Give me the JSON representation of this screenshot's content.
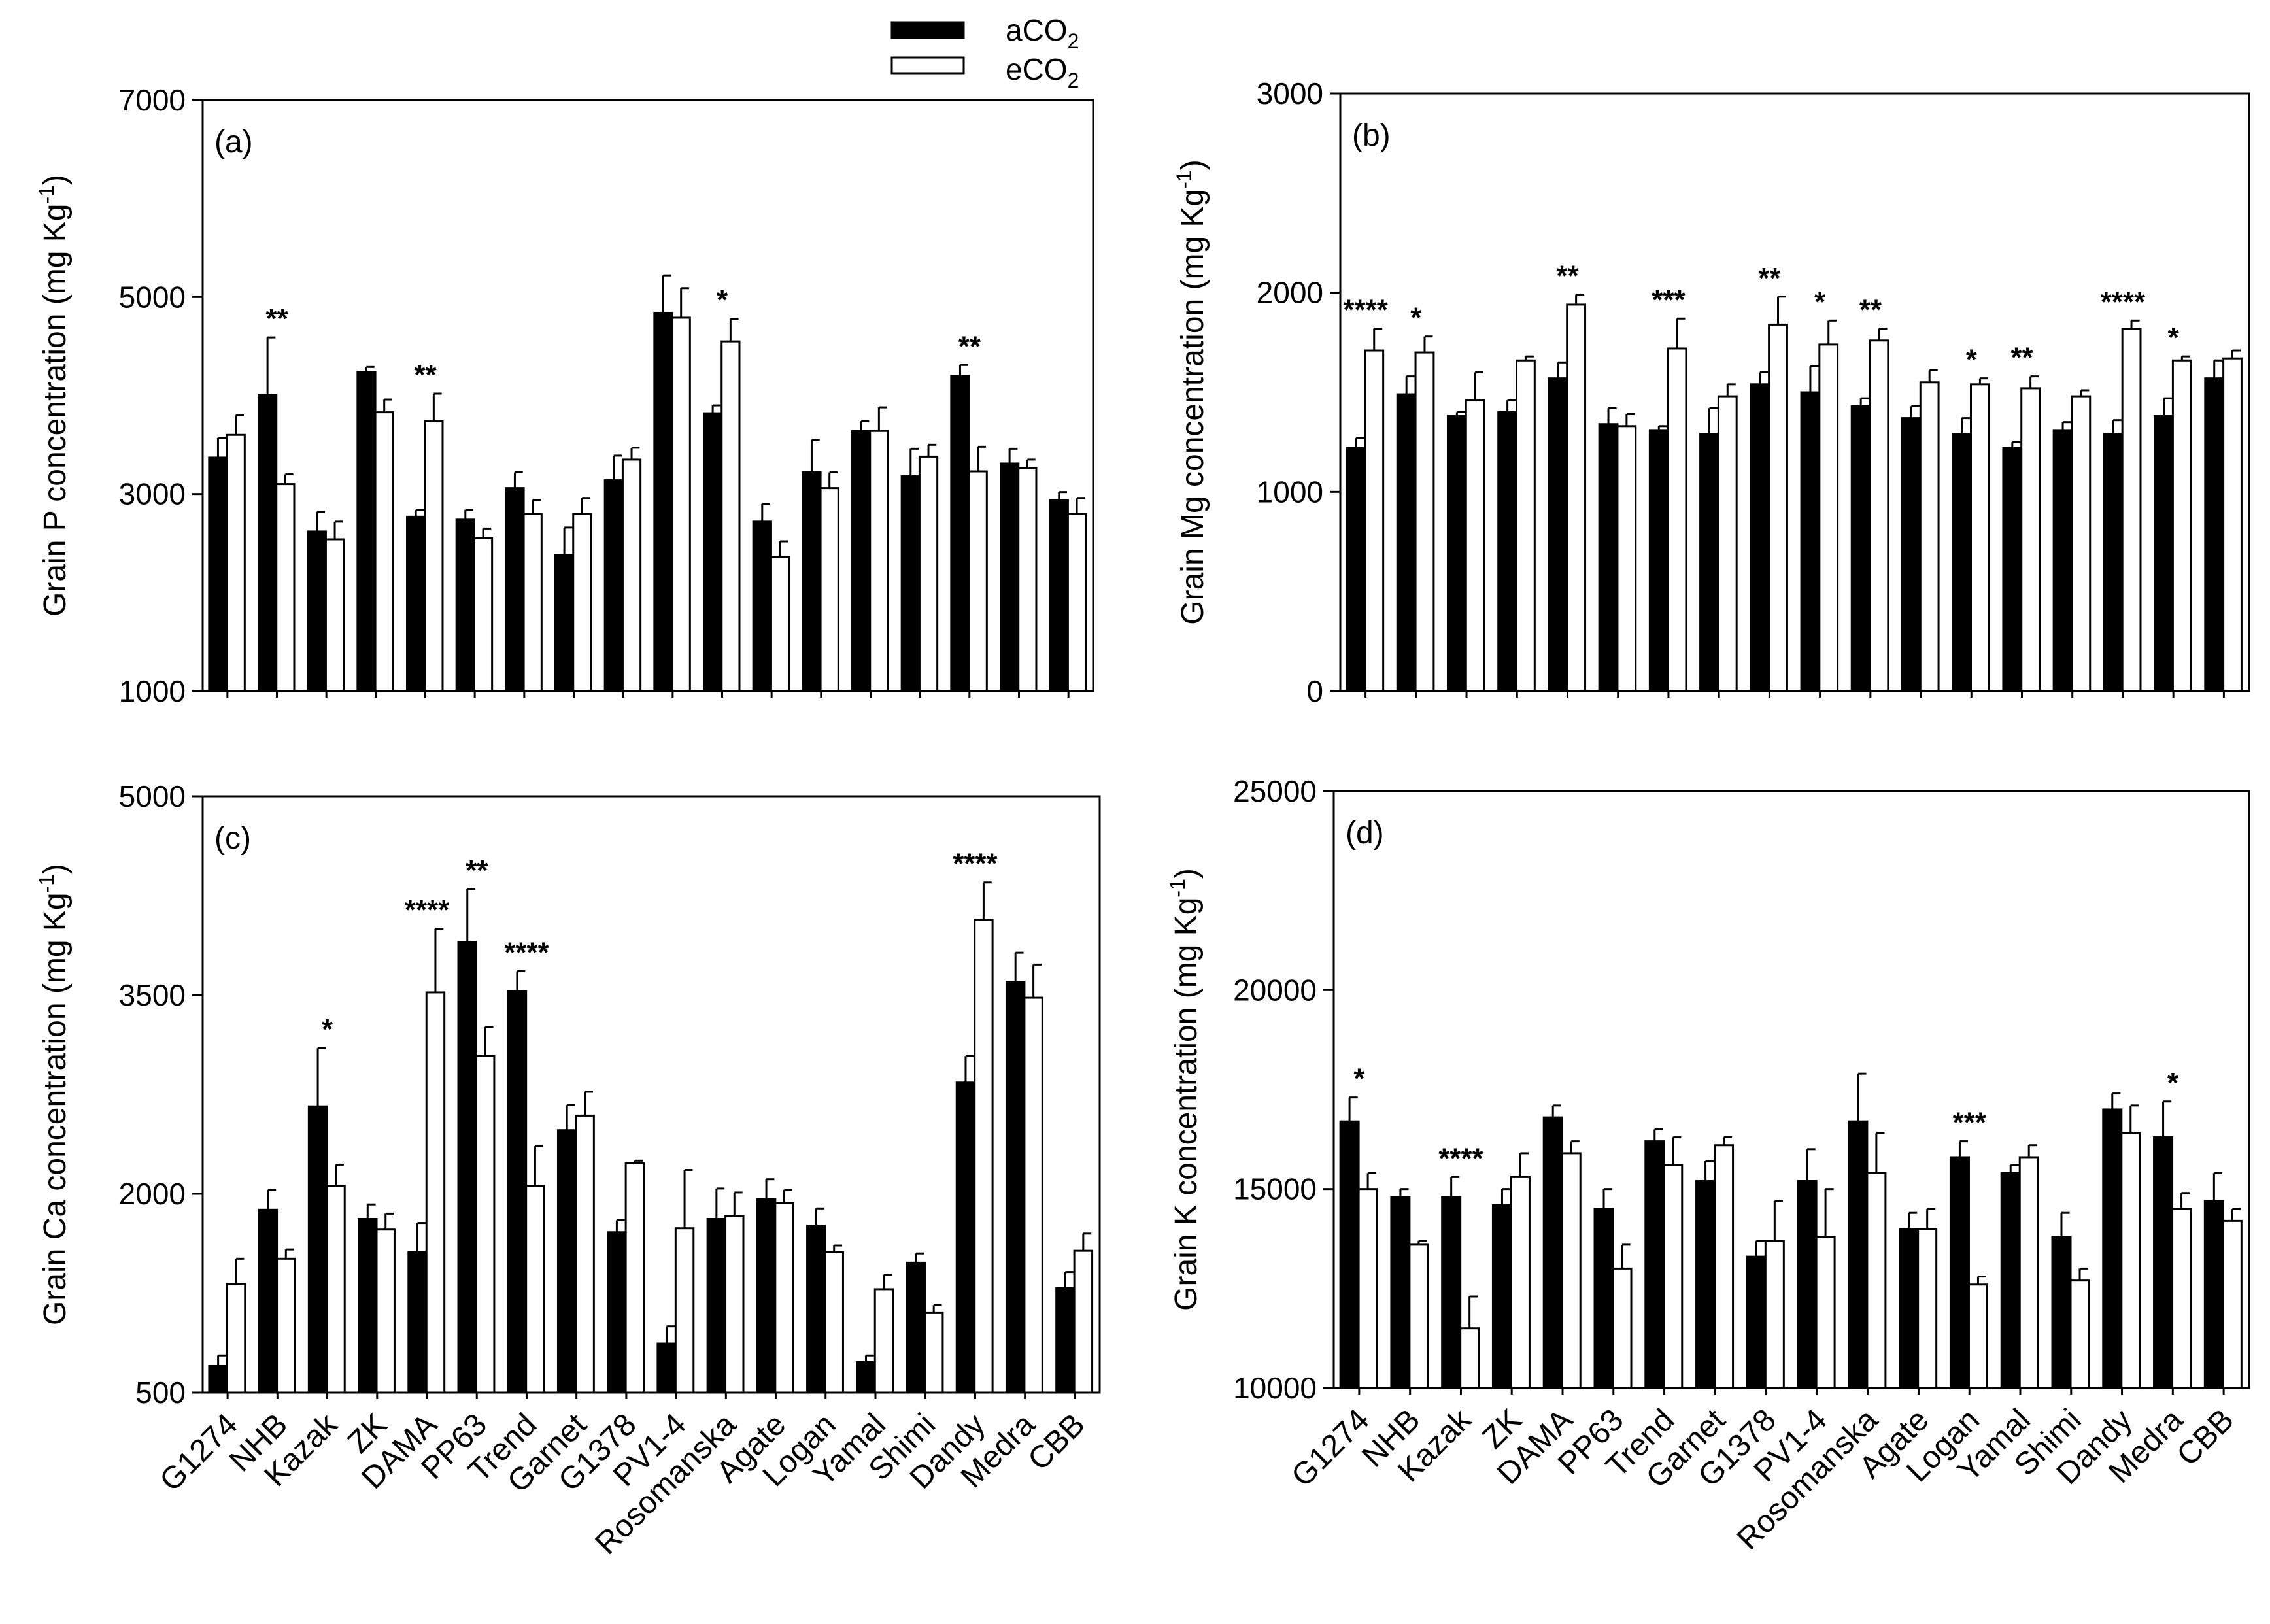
{
  "figure": {
    "legend": [
      {
        "label": "aCO",
        "sub": "2",
        "color": "#000000"
      },
      {
        "label": "eCO",
        "sub": "2",
        "color": "#ffffff"
      }
    ]
  },
  "chart_data": [
    {
      "type": "bar",
      "panel": "(a)",
      "ylabel": "Grain P concentration (mg Kg",
      "ylabel_sup": "-1",
      "ylabel_end": ")",
      "ylim": [
        1000,
        7000
      ],
      "yticks": [
        1000,
        3000,
        5000,
        7000
      ],
      "categories": [
        "G1274",
        "NHB",
        "Kazak",
        "ZK",
        "DAMA",
        "PP63",
        "Trend",
        "Garnet",
        "G1378",
        "PV1-4",
        "Rosomanska",
        "Agate",
        "Logan",
        "Yamal",
        "Shimi",
        "Dandy",
        "Medra",
        "CBB"
      ],
      "series": [
        {
          "name": "aCO2",
          "values": [
            3370,
            4010,
            2620,
            4240,
            2770,
            2740,
            3060,
            2380,
            3140,
            4840,
            3820,
            2720,
            3220,
            3640,
            3180,
            4200,
            3310,
            2940
          ],
          "errors": [
            200,
            580,
            200,
            50,
            70,
            100,
            160,
            280,
            250,
            380,
            80,
            180,
            330,
            100,
            280,
            110,
            150,
            80
          ]
        },
        {
          "name": "eCO2",
          "values": [
            3600,
            3100,
            2540,
            3830,
            3740,
            2550,
            2800,
            2800,
            3350,
            4790,
            4550,
            2360,
            3060,
            3640,
            3380,
            3230,
            3260,
            2800
          ],
          "errors": [
            200,
            100,
            180,
            130,
            280,
            100,
            140,
            160,
            120,
            300,
            230,
            160,
            160,
            240,
            120,
            250,
            90,
            160
          ]
        }
      ],
      "significance": [
        {
          "category": "NHB",
          "stars": "**"
        },
        {
          "category": "DAMA",
          "stars": "**"
        },
        {
          "category": "Rosomanska",
          "stars": "*"
        },
        {
          "category": "Dandy",
          "stars": "**"
        }
      ]
    },
    {
      "type": "bar",
      "panel": "(b)",
      "ylabel": "Grain Mg concentration (mg Kg",
      "ylabel_sup": "-1",
      "ylabel_end": ")",
      "ylim": [
        0,
        3000
      ],
      "yticks": [
        0,
        1000,
        2000,
        3000
      ],
      "categories": [
        "G1274",
        "NHB",
        "Kazak",
        "ZK",
        "DAMA",
        "PP63",
        "Trend",
        "Garnet",
        "G1378",
        "PV1-4",
        "Rosomanska",
        "Agate",
        "Logan",
        "Yamal",
        "Shimi",
        "Dandy",
        "Medra",
        "CBB"
      ],
      "series": [
        {
          "name": "aCO2",
          "values": [
            1220,
            1490,
            1380,
            1400,
            1570,
            1340,
            1310,
            1290,
            1540,
            1500,
            1430,
            1370,
            1290,
            1220,
            1310,
            1290,
            1380,
            1570
          ],
          "errors": [
            50,
            90,
            20,
            60,
            80,
            80,
            20,
            130,
            60,
            130,
            40,
            60,
            80,
            30,
            40,
            70,
            90,
            90
          ]
        },
        {
          "name": "eCO2",
          "values": [
            1710,
            1700,
            1460,
            1660,
            1940,
            1330,
            1720,
            1480,
            1840,
            1740,
            1760,
            1550,
            1540,
            1520,
            1480,
            1820,
            1660,
            1670
          ],
          "errors": [
            110,
            80,
            140,
            20,
            50,
            60,
            150,
            60,
            140,
            120,
            60,
            60,
            30,
            60,
            30,
            40,
            20,
            40
          ]
        }
      ],
      "significance": [
        {
          "category": "G1274",
          "stars": "****"
        },
        {
          "category": "NHB",
          "stars": "*"
        },
        {
          "category": "DAMA",
          "stars": "**"
        },
        {
          "category": "Trend",
          "stars": "***"
        },
        {
          "category": "G1378",
          "stars": "**"
        },
        {
          "category": "PV1-4",
          "stars": "*"
        },
        {
          "category": "Rosomanska",
          "stars": "**"
        },
        {
          "category": "Logan",
          "stars": "*"
        },
        {
          "category": "Yamal",
          "stars": "**"
        },
        {
          "category": "Dandy",
          "stars": "****"
        },
        {
          "category": "Medra",
          "stars": "*"
        }
      ]
    },
    {
      "type": "bar",
      "panel": "(c)",
      "ylabel": "Grain Ca concentration (mg Kg",
      "ylabel_sup": "-1",
      "ylabel_end": ")",
      "ylim": [
        500,
        5000
      ],
      "yticks": [
        500,
        2000,
        3500,
        5000
      ],
      "categories": [
        "G1274",
        "NHB",
        "Kazak",
        "ZK",
        "DAMA",
        "PP63",
        "Trend",
        "Garnet",
        "G1378",
        "PV1-4",
        "Rosomanska",
        "Agate",
        "Logan",
        "Yamal",
        "Shimi",
        "Dandy",
        "Medra",
        "CBB"
      ],
      "series": [
        {
          "name": "aCO2",
          "values": [
            700,
            1880,
            2660,
            1810,
            1560,
            3900,
            3530,
            2480,
            1710,
            870,
            1810,
            1960,
            1760,
            730,
            1480,
            2840,
            3600,
            1290
          ],
          "errors": [
            80,
            150,
            440,
            110,
            220,
            400,
            150,
            190,
            90,
            130,
            230,
            150,
            130,
            50,
            70,
            200,
            220,
            120
          ]
        },
        {
          "name": "eCO2",
          "values": [
            1320,
            1510,
            2060,
            1730,
            3520,
            3040,
            2060,
            2590,
            2230,
            1740,
            1830,
            1930,
            1560,
            1280,
            1100,
            4070,
            3480,
            1570
          ],
          "errors": [
            190,
            70,
            160,
            120,
            480,
            220,
            300,
            180,
            20,
            440,
            180,
            100,
            50,
            110,
            60,
            280,
            250,
            130
          ]
        }
      ],
      "significance": [
        {
          "category": "Kazak",
          "stars": "*"
        },
        {
          "category": "DAMA",
          "stars": "****"
        },
        {
          "category": "PP63",
          "stars": "**"
        },
        {
          "category": "Trend",
          "stars": "****"
        },
        {
          "category": "Dandy",
          "stars": "****"
        }
      ]
    },
    {
      "type": "bar",
      "panel": "(d)",
      "ylabel": "Grain K concentration (mg Kg",
      "ylabel_sup": "-1",
      "ylabel_end": ")",
      "ylim": [
        10000,
        25000
      ],
      "yticks": [
        10000,
        15000,
        20000,
        25000
      ],
      "categories": [
        "G1274",
        "NHB",
        "Kazak",
        "ZK",
        "DAMA",
        "PP63",
        "Trend",
        "Garnet",
        "G1378",
        "PV1-4",
        "Rosomanska",
        "Agate",
        "Logan",
        "Yamal",
        "Shimi",
        "Dandy",
        "Medra",
        "CBB"
      ],
      "series": [
        {
          "name": "aCO2",
          "values": [
            16700,
            14800,
            14800,
            14600,
            16800,
            14500,
            16200,
            15200,
            13300,
            15200,
            16700,
            14000,
            15800,
            15400,
            13800,
            17000,
            16300,
            14700
          ],
          "errors": [
            600,
            200,
            500,
            400,
            300,
            500,
            300,
            500,
            400,
            800,
            1200,
            400,
            400,
            200,
            600,
            400,
            900,
            700
          ]
        },
        {
          "name": "eCO2",
          "values": [
            15000,
            13600,
            11500,
            15300,
            15900,
            13000,
            15600,
            16100,
            13700,
            13800,
            15400,
            14000,
            12600,
            15800,
            12700,
            16400,
            14500,
            14200
          ],
          "errors": [
            400,
            100,
            800,
            600,
            300,
            600,
            700,
            200,
            1000,
            1200,
            1000,
            500,
            200,
            300,
            300,
            700,
            400,
            300
          ]
        }
      ],
      "significance": [
        {
          "category": "G1274",
          "stars": "*"
        },
        {
          "category": "Kazak",
          "stars": "****"
        },
        {
          "category": "Logan",
          "stars": "***"
        },
        {
          "category": "Medra",
          "stars": "*"
        }
      ]
    }
  ]
}
